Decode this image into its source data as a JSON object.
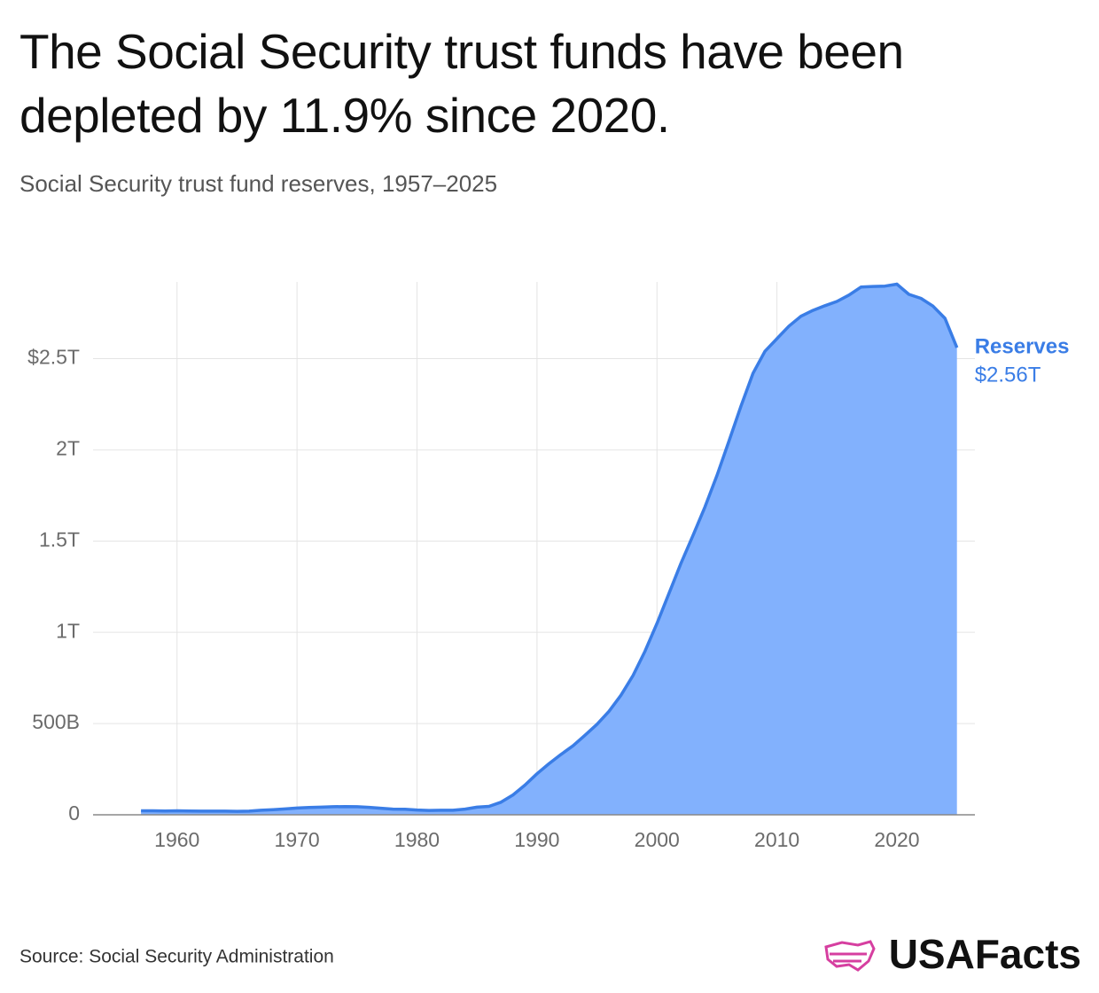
{
  "chart_data": {
    "type": "area",
    "title": "The Social Security trust funds have been depleted by 11.9% since 2020.",
    "subtitle": "Social Security trust fund reserves, 1957–2025",
    "source": "Source: Social Security Administration",
    "brand": "USAFacts",
    "x": [
      1957,
      1958,
      1959,
      1960,
      1961,
      1962,
      1963,
      1964,
      1965,
      1966,
      1967,
      1968,
      1969,
      1970,
      1971,
      1972,
      1973,
      1974,
      1975,
      1976,
      1977,
      1978,
      1979,
      1980,
      1981,
      1982,
      1983,
      1984,
      1985,
      1986,
      1987,
      1988,
      1989,
      1990,
      1991,
      1992,
      1993,
      1994,
      1995,
      1996,
      1997,
      1998,
      1999,
      2000,
      2001,
      2002,
      2003,
      2004,
      2005,
      2006,
      2007,
      2008,
      2009,
      2010,
      2011,
      2012,
      2013,
      2014,
      2015,
      2016,
      2017,
      2018,
      2019,
      2020,
      2021,
      2022,
      2023,
      2024,
      2025
    ],
    "series": [
      {
        "name": "Reserves",
        "color": "#3a7de6",
        "fill": "#82b1fd",
        "values": [
          22,
          22,
          21,
          22,
          21,
          20,
          20,
          20,
          19,
          20,
          25,
          28,
          32,
          37,
          40,
          42,
          44,
          45,
          44,
          41,
          36,
          31,
          30,
          26,
          24,
          25,
          25,
          31,
          42,
          46,
          69,
          109,
          163,
          225,
          280,
          331,
          378,
          436,
          496,
          567,
          655,
          763,
          896,
          1049,
          1213,
          1378,
          1531,
          1687,
          1859,
          2048,
          2239,
          2419,
          2540,
          2609,
          2678,
          2732,
          2764,
          2790,
          2813,
          2848,
          2892,
          2895,
          2897,
          2908,
          2852,
          2830,
          2788,
          2721,
          2560
        ],
        "value_labels": [
          null,
          null,
          null,
          null,
          null,
          null,
          null,
          null,
          null,
          null,
          null,
          null,
          null,
          null,
          null,
          null,
          null,
          null,
          null,
          null,
          null,
          null,
          null,
          null,
          null,
          null,
          null,
          null,
          null,
          null,
          null,
          null,
          null,
          null,
          null,
          null,
          null,
          null,
          null,
          null,
          null,
          null,
          null,
          null,
          null,
          null,
          null,
          null,
          null,
          null,
          null,
          null,
          null,
          null,
          null,
          null,
          null,
          null,
          null,
          null,
          null,
          null,
          null,
          null,
          null,
          null,
          null,
          null,
          "$2.56T"
        ]
      }
    ],
    "xlim": [
      1953,
      2026.5
    ],
    "ylim": [
      0,
      2920
    ],
    "xticks": [
      1960,
      1970,
      1980,
      1990,
      2000,
      2010,
      2020
    ],
    "yticks": [
      0,
      {
        "value": 500,
        "label": "500B"
      },
      {
        "value": 1000,
        "label": "1T"
      },
      {
        "value": 1500,
        "label": "1.5T"
      },
      {
        "value": 2000,
        "label": "2T"
      },
      {
        "value": 2500,
        "label": "$2.5T"
      }
    ],
    "grid": true
  }
}
